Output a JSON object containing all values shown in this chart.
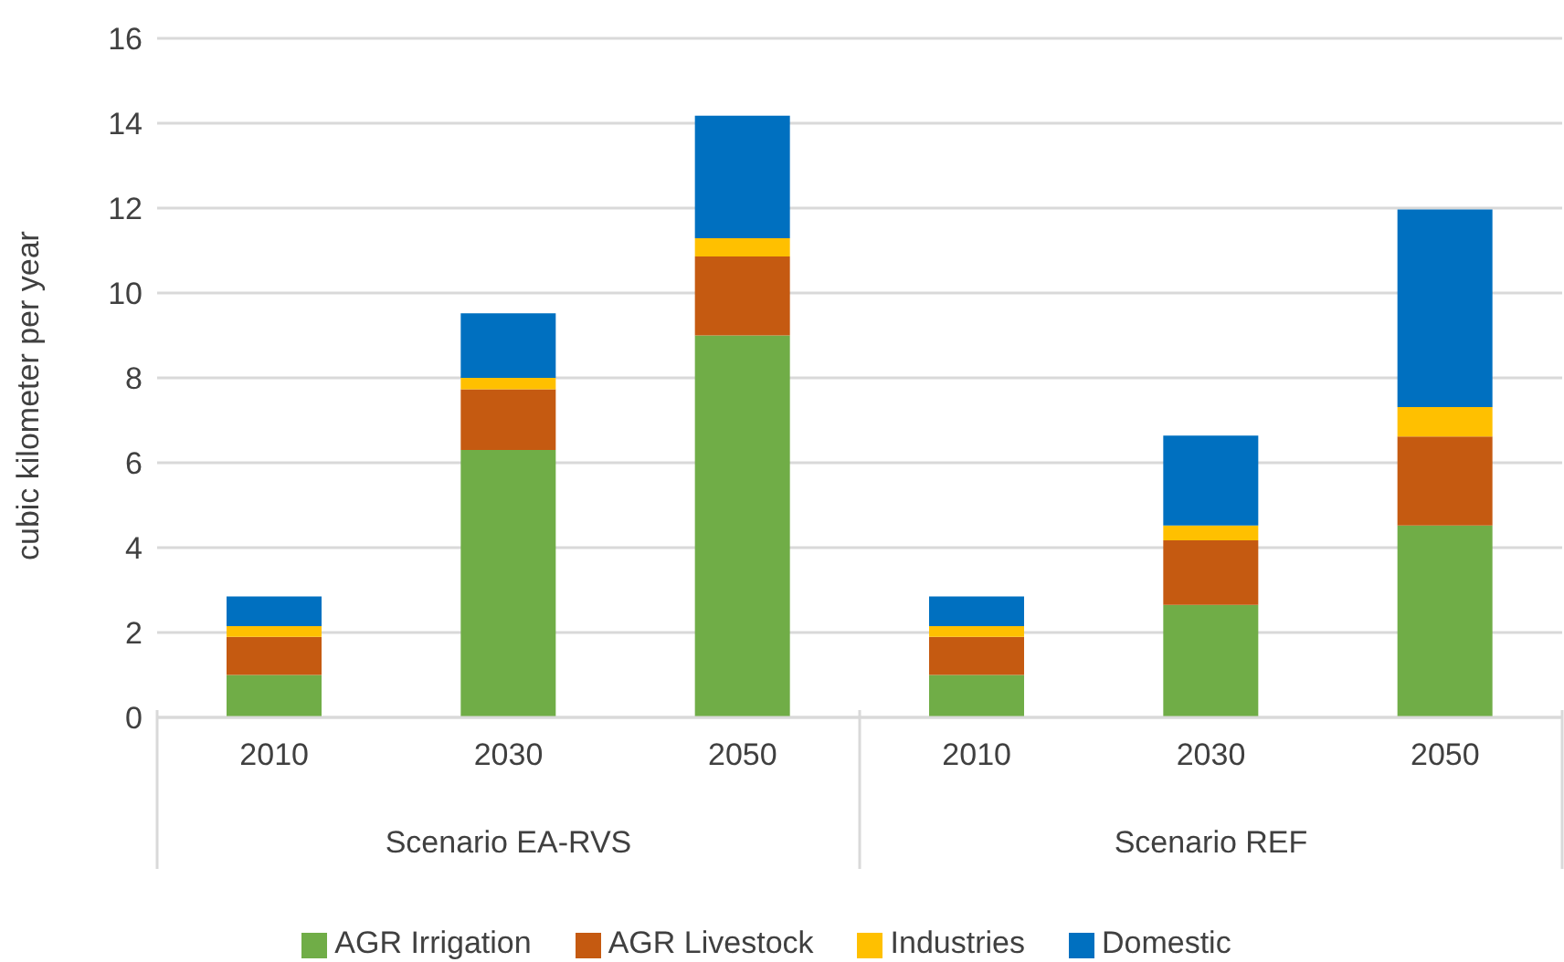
{
  "chart_data": {
    "type": "bar",
    "stacked": true,
    "ylabel": "cubic kilometer per year",
    "categories": [
      "2010",
      "2030",
      "2050",
      "2010",
      "2030",
      "2050"
    ],
    "series": [
      {
        "name": "AGR Irrigation",
        "color": "#70ad47",
        "values": [
          1.0,
          6.3,
          9.0,
          1.0,
          2.65,
          4.52
        ]
      },
      {
        "name": "AGR Livestock",
        "color": "#c55a11",
        "values": [
          0.9,
          1.43,
          1.86,
          0.9,
          1.52,
          2.1
        ]
      },
      {
        "name": "Industries",
        "color": "#ffc000",
        "values": [
          0.25,
          0.27,
          0.43,
          0.25,
          0.35,
          0.69
        ]
      },
      {
        "name": "Domestic",
        "color": "#0070c0",
        "values": [
          0.7,
          1.52,
          2.89,
          0.7,
          2.12,
          4.66
        ]
      }
    ],
    "ylim": [
      0,
      16
    ],
    "yticks": [
      0,
      2,
      4,
      6,
      8,
      10,
      12,
      14,
      16
    ],
    "grid": "y",
    "legend": "bottom",
    "annotations": [
      "Scenario EA-RVS",
      "Scenario REF"
    ]
  }
}
